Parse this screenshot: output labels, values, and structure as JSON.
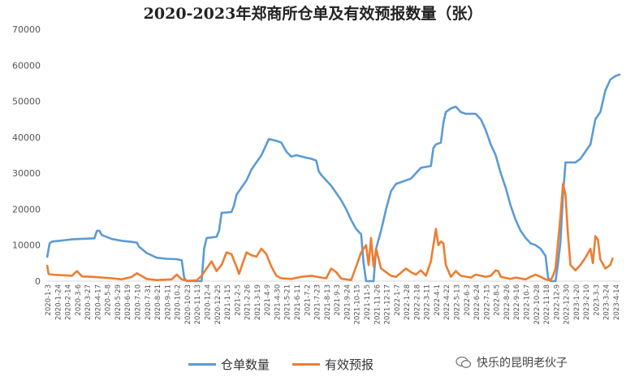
{
  "chart_data": {
    "type": "line",
    "title": "2020-2023年郑商所仓单及有效预报数量（张）",
    "ylim": [
      0,
      70000
    ],
    "yticks": [
      0,
      10000,
      20000,
      30000,
      40000,
      50000,
      60000,
      70000
    ],
    "ytick_labels": [
      "0",
      "10000",
      "20000",
      "30000",
      "40000",
      "50000",
      "60000",
      "70000"
    ],
    "xtick_labels": [
      "2020-1-3",
      "2020-1-24",
      "2020-2-14",
      "2020-3-6",
      "2020-3-27",
      "2020-4-17",
      "2020-5-8",
      "2020-5-29",
      "2020-6-19",
      "2020-7-10",
      "2020-7-31",
      "2020-8-21",
      "2020-9-11",
      "2020-10-2",
      "2020-10-23",
      "2020-11-13",
      "2020-12-4",
      "2020-12-25",
      "2021-1-15",
      "2021-2-5",
      "2021-2-26",
      "2021-3-19",
      "2021-4-9",
      "2021-4-30",
      "2021-5-21",
      "2021-6-11",
      "2021-7-2",
      "2021-7-23",
      "2021-8-13",
      "2021-9-3",
      "2021-9-24",
      "2021-10-15",
      "2021-11-5",
      "2021-11-26",
      "2021-12-17",
      "2022-1-7",
      "2022-1-28",
      "2022-2-18",
      "2022-3-11",
      "2022-4-1",
      "2022-4-22",
      "2022-5-13",
      "2022-6-3",
      "2022-6-24",
      "2022-7-15",
      "2022-8-5",
      "2022-8-26",
      "2022-9-16",
      "2022-10-7",
      "2022-10-28",
      "2022-11-18",
      "2022-12-9",
      "2022-12-30",
      "2023-1-20",
      "2023-2-10",
      "2023-3-3",
      "2023-3-24",
      "2023-4-14"
    ],
    "grid": false,
    "legend_position": "bottom",
    "series": [
      {
        "name": "仓单数量",
        "color": "#5B9BD5",
        "points": [
          [
            0,
            6500
          ],
          [
            0.5,
            10500
          ],
          [
            1,
            11000
          ],
          [
            3,
            11300
          ],
          [
            5,
            11600
          ],
          [
            8,
            11800
          ],
          [
            9.5,
            11900
          ],
          [
            10,
            14000
          ],
          [
            10.5,
            14000
          ],
          [
            11,
            12800
          ],
          [
            13,
            11700
          ],
          [
            15,
            11200
          ],
          [
            17,
            10900
          ],
          [
            18,
            10700
          ],
          [
            18.5,
            9500
          ],
          [
            20,
            7800
          ],
          [
            22,
            6500
          ],
          [
            24,
            6200
          ],
          [
            26,
            6100
          ],
          [
            27,
            5800
          ],
          [
            27.5,
            1000
          ],
          [
            28,
            0
          ],
          [
            30,
            0
          ],
          [
            31,
            0
          ],
          [
            31.5,
            9000
          ],
          [
            32,
            12000
          ],
          [
            34,
            12300
          ],
          [
            34.5,
            14000
          ],
          [
            35,
            19000
          ],
          [
            37,
            19200
          ],
          [
            37.5,
            21000
          ],
          [
            38,
            24000
          ],
          [
            39,
            26000
          ],
          [
            40,
            28000
          ],
          [
            41,
            31000
          ],
          [
            42,
            33000
          ],
          [
            43,
            35000
          ],
          [
            44,
            38000
          ],
          [
            44.5,
            39500
          ],
          [
            46,
            39000
          ],
          [
            47,
            38500
          ],
          [
            48,
            36000
          ],
          [
            49,
            34600
          ],
          [
            50,
            35000
          ],
          [
            52,
            34300
          ],
          [
            53,
            34000
          ],
          [
            54,
            33500
          ],
          [
            54.5,
            30500
          ],
          [
            55,
            29500
          ],
          [
            56,
            28000
          ],
          [
            57,
            26500
          ],
          [
            58,
            24500
          ],
          [
            59,
            22500
          ],
          [
            60,
            20000
          ],
          [
            61,
            17000
          ],
          [
            62,
            14500
          ],
          [
            63,
            13000
          ],
          [
            63.5,
            5000
          ],
          [
            64,
            0
          ],
          [
            65,
            0
          ],
          [
            65.5,
            0
          ],
          [
            66,
            9000
          ],
          [
            67,
            14000
          ],
          [
            68,
            20000
          ],
          [
            69,
            25000
          ],
          [
            70,
            27000
          ],
          [
            72,
            28000
          ],
          [
            73,
            28500
          ],
          [
            74,
            30000
          ],
          [
            75,
            31500
          ],
          [
            77,
            32000
          ],
          [
            77.5,
            37000
          ],
          [
            78,
            38000
          ],
          [
            79,
            38500
          ],
          [
            79.5,
            44000
          ],
          [
            80,
            47000
          ],
          [
            81,
            48000
          ],
          [
            82,
            48500
          ],
          [
            83,
            47000
          ],
          [
            84,
            46500
          ],
          [
            86,
            46500
          ],
          [
            87,
            45000
          ],
          [
            88,
            42000
          ],
          [
            89,
            38000
          ],
          [
            90,
            35000
          ],
          [
            91,
            30000
          ],
          [
            92,
            26000
          ],
          [
            93,
            21000
          ],
          [
            94,
            17000
          ],
          [
            95,
            14000
          ],
          [
            96,
            12000
          ],
          [
            97,
            10500
          ],
          [
            98,
            10000
          ],
          [
            99,
            9000
          ],
          [
            100,
            7000
          ],
          [
            100.5,
            1000
          ],
          [
            101,
            0
          ],
          [
            102,
            0
          ],
          [
            102.5,
            5000
          ],
          [
            103,
            11000
          ],
          [
            103.5,
            24000
          ],
          [
            104,
            33000
          ],
          [
            106,
            33000
          ],
          [
            107,
            34000
          ],
          [
            108,
            36000
          ],
          [
            109,
            38000
          ],
          [
            110,
            45000
          ],
          [
            111,
            47000
          ],
          [
            112,
            53000
          ],
          [
            113,
            56000
          ],
          [
            114,
            57000
          ],
          [
            115,
            57500
          ]
        ]
      },
      {
        "name": "有效预报",
        "color": "#ED7D31",
        "points": [
          [
            0,
            4500
          ],
          [
            0.3,
            2000
          ],
          [
            1,
            1800
          ],
          [
            5,
            1500
          ],
          [
            6,
            2800
          ],
          [
            7,
            1300
          ],
          [
            9,
            1200
          ],
          [
            11,
            1000
          ],
          [
            13,
            800
          ],
          [
            15,
            500
          ],
          [
            17,
            1200
          ],
          [
            18,
            2200
          ],
          [
            19,
            1400
          ],
          [
            20,
            600
          ],
          [
            22,
            300
          ],
          [
            25,
            500
          ],
          [
            26,
            1800
          ],
          [
            27,
            500
          ],
          [
            28,
            100
          ],
          [
            30,
            200
          ],
          [
            31,
            1500
          ],
          [
            32,
            3500
          ],
          [
            33,
            5500
          ],
          [
            34,
            2800
          ],
          [
            35,
            4500
          ],
          [
            36,
            8000
          ],
          [
            37,
            7500
          ],
          [
            38,
            4000
          ],
          [
            38.5,
            2000
          ],
          [
            39.5,
            6000
          ],
          [
            40,
            8000
          ],
          [
            41,
            7200
          ],
          [
            42,
            6800
          ],
          [
            43,
            9000
          ],
          [
            44,
            7500
          ],
          [
            45,
            4000
          ],
          [
            46,
            1500
          ],
          [
            47,
            800
          ],
          [
            49,
            600
          ],
          [
            51,
            1200
          ],
          [
            53,
            1500
          ],
          [
            55,
            1000
          ],
          [
            56,
            800
          ],
          [
            57,
            3500
          ],
          [
            58,
            2500
          ],
          [
            59,
            700
          ],
          [
            60,
            500
          ],
          [
            61,
            300
          ],
          [
            62,
            4000
          ],
          [
            63,
            8000
          ],
          [
            64,
            10000
          ],
          [
            64.5,
            4500
          ],
          [
            65,
            12000
          ],
          [
            65.5,
            4000
          ],
          [
            66,
            9000
          ],
          [
            67,
            3500
          ],
          [
            68,
            2500
          ],
          [
            69,
            1500
          ],
          [
            70,
            1200
          ],
          [
            72,
            3500
          ],
          [
            73,
            2500
          ],
          [
            74,
            1800
          ],
          [
            75,
            3000
          ],
          [
            76,
            1500
          ],
          [
            77,
            5500
          ],
          [
            77.5,
            10000
          ],
          [
            78,
            14500
          ],
          [
            78.5,
            10000
          ],
          [
            79,
            11000
          ],
          [
            79.5,
            10500
          ],
          [
            80,
            4500
          ],
          [
            81,
            1200
          ],
          [
            82,
            2800
          ],
          [
            83,
            1500
          ],
          [
            85,
            1000
          ],
          [
            86,
            1800
          ],
          [
            88,
            1200
          ],
          [
            89,
            1500
          ],
          [
            90,
            3000
          ],
          [
            90.5,
            2800
          ],
          [
            91,
            1200
          ],
          [
            93,
            600
          ],
          [
            94,
            1000
          ],
          [
            96,
            500
          ],
          [
            97,
            1200
          ],
          [
            98,
            1800
          ],
          [
            99,
            1200
          ],
          [
            100,
            500
          ],
          [
            101,
            200
          ],
          [
            101.5,
            1500
          ],
          [
            102,
            3500
          ],
          [
            103,
            18000
          ],
          [
            103.5,
            27000
          ],
          [
            104,
            24000
          ],
          [
            104.5,
            13000
          ],
          [
            105,
            4500
          ],
          [
            106,
            3000
          ],
          [
            107,
            4500
          ],
          [
            108,
            6500
          ],
          [
            109,
            9000
          ],
          [
            109.5,
            5000
          ],
          [
            110,
            12500
          ],
          [
            110.5,
            11500
          ],
          [
            111,
            6000
          ],
          [
            112,
            3500
          ],
          [
            113,
            4500
          ],
          [
            113.5,
            6500
          ]
        ]
      }
    ]
  },
  "legend": {
    "items": [
      {
        "label": "仓单数量",
        "color": "#5B9BD5"
      },
      {
        "label": "有效预报",
        "color": "#ED7D31"
      }
    ]
  },
  "watermark": {
    "text": "快乐的昆明老伙子"
  }
}
